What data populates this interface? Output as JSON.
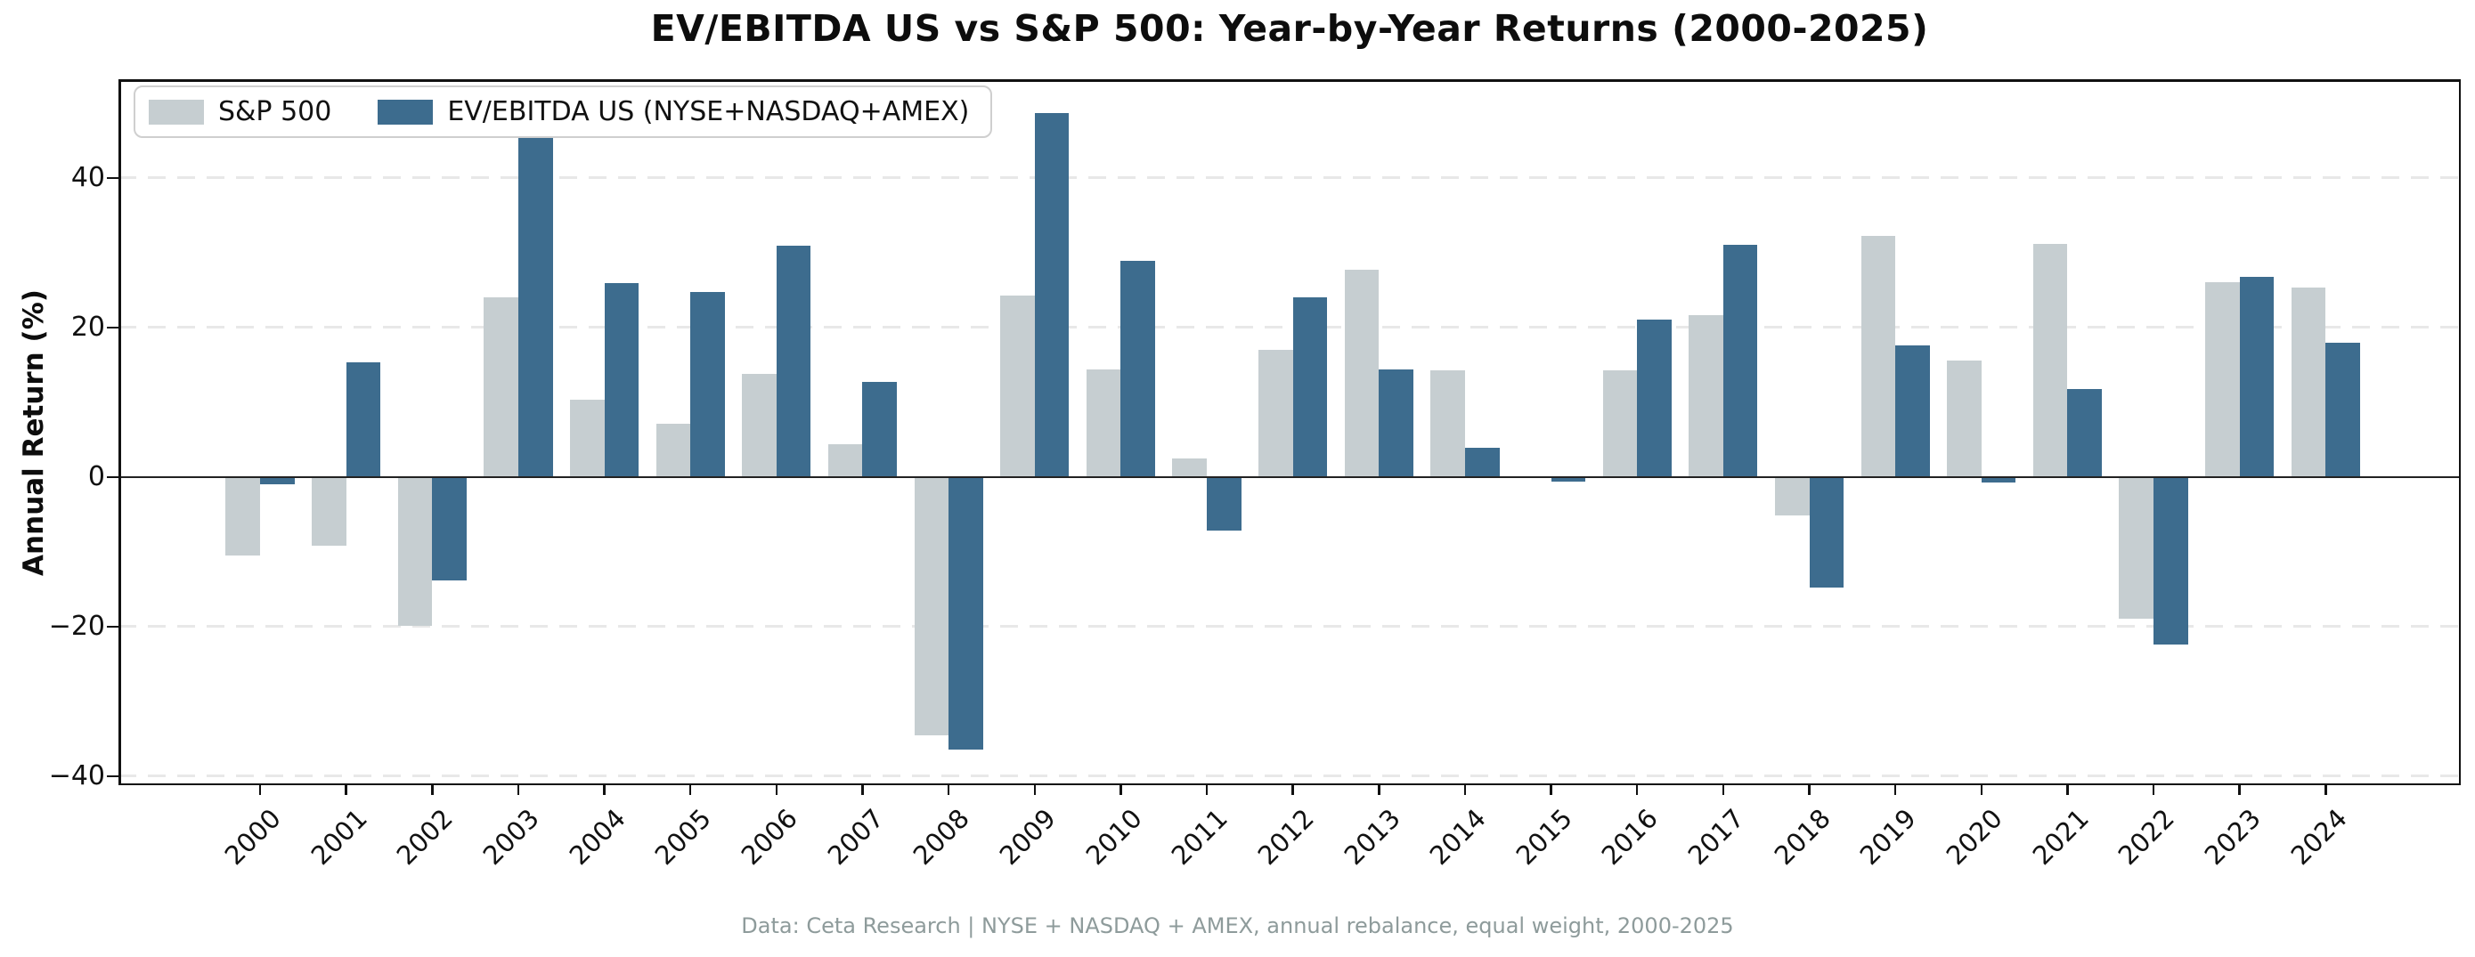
{
  "figure": {
    "title": "EV/EBITDA US vs S&P 500: Year-by-Year Returns (2000-2025)",
    "ylabel": "Annual Return (%)",
    "footer": "Data: Ceta Research | NYSE + NASDAQ + AMEX, annual rebalance, equal weight, 2000-2025"
  },
  "legend": {
    "items": [
      {
        "label": "S&P 500",
        "color": "#c6ced1"
      },
      {
        "label": "EV/EBITDA US (NYSE+NASDAQ+AMEX)",
        "color": "#3d6c8e"
      }
    ]
  },
  "chart_data": {
    "type": "bar",
    "title": "EV/EBITDA US vs S&P 500: Year-by-Year Returns (2000-2025)",
    "xlabel": "",
    "ylabel": "Annual Return (%)",
    "categories": [
      "2000",
      "2001",
      "2002",
      "2003",
      "2004",
      "2005",
      "2006",
      "2007",
      "2008",
      "2009",
      "2010",
      "2011",
      "2012",
      "2013",
      "2014",
      "2015",
      "2016",
      "2017",
      "2018",
      "2019",
      "2020",
      "2021",
      "2022",
      "2023",
      "2024"
    ],
    "series": [
      {
        "name": "S&P 500",
        "color": "#c6ced1",
        "values": [
          -10.5,
          -9.2,
          -19.9,
          24.0,
          10.3,
          7.1,
          13.8,
          4.4,
          -34.5,
          24.3,
          14.4,
          2.5,
          17.0,
          27.7,
          14.3,
          0.0,
          14.3,
          21.7,
          -5.1,
          32.3,
          15.6,
          31.2,
          -18.9,
          26.1,
          25.4
        ]
      },
      {
        "name": "EV/EBITDA US (NYSE+NASDAQ+AMEX)",
        "color": "#3d6c8e",
        "values": [
          -1.0,
          15.4,
          -13.8,
          46.8,
          25.9,
          24.8,
          30.9,
          12.7,
          -36.4,
          48.7,
          28.9,
          -7.1,
          24.0,
          14.4,
          3.9,
          -0.6,
          21.1,
          31.1,
          -14.8,
          17.6,
          -0.7,
          11.8,
          -22.4,
          26.8,
          18.0
        ]
      }
    ],
    "yticks": [
      {
        "value": 40,
        "label": "40"
      },
      {
        "value": 20,
        "label": "20"
      },
      {
        "value": 0,
        "label": "0"
      },
      {
        "value": -20,
        "label": "−20"
      },
      {
        "value": -40,
        "label": "−40"
      }
    ],
    "ylim": [
      -41.2,
      53.2
    ],
    "grid": "horizontal-dashed",
    "zero_line": true,
    "legend_position": "upper-left",
    "bar_width_ratio": 0.4
  }
}
